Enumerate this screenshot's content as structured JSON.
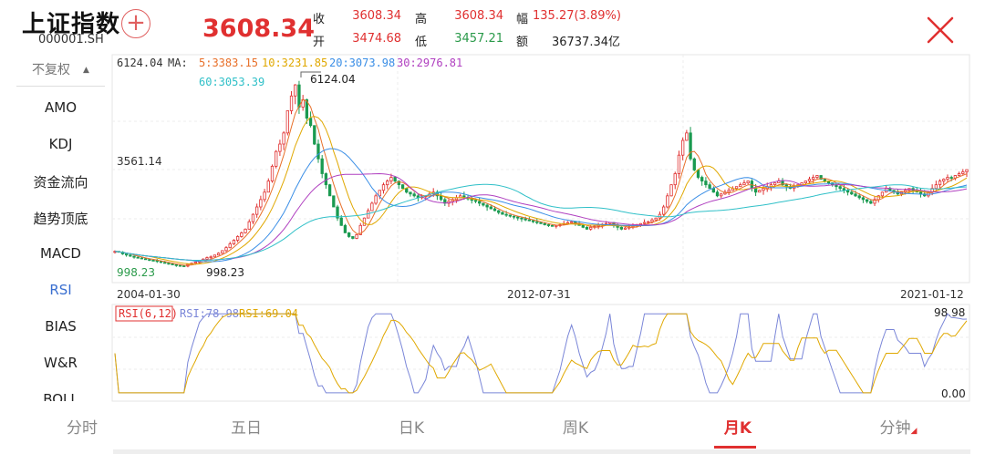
{
  "header": {
    "name": "上证指数",
    "code": "000001.SH",
    "price": "3608.34",
    "fields": [
      {
        "label": "收",
        "value": "3608.34",
        "color": "#e03030"
      },
      {
        "label": "高",
        "value": "3608.34",
        "color": "#e03030"
      },
      {
        "label": "幅",
        "value": "135.27(3.89%)",
        "color": "#e03030"
      },
      {
        "label": "开",
        "value": "3474.68",
        "color": "#e03030"
      },
      {
        "label": "低",
        "value": "3457.21",
        "color": "#2a9a4a"
      },
      {
        "label": "额",
        "value": "36737.34亿",
        "color": "#222222"
      }
    ]
  },
  "sidebar": {
    "adjust": "不复权",
    "items": [
      "AMO",
      "KDJ",
      "资金流向",
      "趋势顶底",
      "MACD",
      "RSI",
      "BIAS",
      "W&R",
      "BOLL"
    ],
    "active": "RSI"
  },
  "tabs": {
    "items": [
      "分时",
      "五日",
      "日K",
      "周K",
      "月K",
      "分钟"
    ],
    "active": "月K"
  },
  "chart_data": [
    {
      "type": "candlestick",
      "top_price_label": "6124.04",
      "ma_prefix": "MA:",
      "ma_legend": [
        {
          "name": "5",
          "text": "5:3383.15",
          "color": "#e8702a"
        },
        {
          "name": "10",
          "text": "10:3231.85",
          "color": "#e0a800"
        },
        {
          "name": "20",
          "text": "20:3073.98",
          "color": "#3a8ee6"
        },
        {
          "name": "30",
          "text": "30:2976.81",
          "color": "#b040c0"
        },
        {
          "name": "60",
          "text": "60:3053.39",
          "color": "#30c0c8"
        }
      ],
      "max_marker": "6124.04",
      "min_marker": "998.23",
      "bottom_left_label": "998.23",
      "mid_price_label": "3561.14",
      "x_ticks": [
        "2004-01-30",
        "2012-07-31",
        "2021-01-12"
      ],
      "ylim": [
        998.23,
        6124.04
      ],
      "series_close": [
        1400,
        1380,
        1330,
        1300,
        1270,
        1240,
        1220,
        1200,
        1180,
        1160,
        1150,
        1130,
        1100,
        1080,
        1060,
        1040,
        1020,
        1010,
        1000,
        1050,
        1080,
        1110,
        1160,
        1190,
        1230,
        1250,
        1300,
        1350,
        1420,
        1500,
        1600,
        1700,
        1800,
        1900,
        2000,
        2200,
        2400,
        2600,
        2800,
        3000,
        3300,
        3700,
        4100,
        4300,
        4600,
        5200,
        5600,
        5900,
        5300,
        5500,
        5000,
        4800,
        4300,
        3900,
        3500,
        3200,
        2900,
        2600,
        2300,
        2100,
        1900,
        1800,
        1750,
        1850,
        2100,
        2300,
        2500,
        2700,
        2900,
        3050,
        3200,
        3300,
        3400,
        3300,
        3200,
        3100,
        3000,
        2950,
        2900,
        2850,
        2880,
        2900,
        2950,
        3000,
        2900,
        2800,
        2700,
        2750,
        2800,
        2850,
        2900,
        2860,
        2820,
        2780,
        2750,
        2700,
        2650,
        2600,
        2550,
        2500,
        2450,
        2400,
        2380,
        2350,
        2330,
        2300,
        2280,
        2250,
        2230,
        2200,
        2180,
        2150,
        2120,
        2100,
        2080,
        2100,
        2120,
        2150,
        2180,
        2200,
        2150,
        2100,
        2050,
        2000,
        2050,
        2080,
        2100,
        2130,
        2150,
        2180,
        2100,
        2050,
        2000,
        2030,
        2060,
        2090,
        2120,
        2150,
        2180,
        2200,
        2250,
        2300,
        2400,
        2600,
        2900,
        3200,
        3500,
        4000,
        4400,
        4600,
        3900,
        3600,
        3400,
        3300,
        3200,
        3100,
        3000,
        2900,
        2950,
        3000,
        3050,
        3100,
        3150,
        3200,
        3250,
        3300,
        3100,
        3000,
        3050,
        3100,
        3150,
        3200,
        3250,
        3300,
        3200,
        3150,
        3100,
        3150,
        3200,
        3250,
        3300,
        3350,
        3400,
        3450,
        3350,
        3300,
        3250,
        3200,
        3150,
        3100,
        3050,
        3000,
        2950,
        2900,
        2850,
        2800,
        2750,
        2700,
        2800,
        2900,
        3000,
        3100,
        3050,
        3000,
        2950,
        3000,
        3050,
        3100,
        3050,
        3000,
        2950,
        2900,
        3000,
        3100,
        3200,
        3300,
        3350,
        3400,
        3380,
        3450,
        3500,
        3550,
        3608
      ]
    },
    {
      "type": "line",
      "legend_box": "RSI(6,12)",
      "series": [
        {
          "name": "RSI:78.98",
          "color": "#7a86d8"
        },
        {
          "name": "RSI:69.04",
          "color": "#e0a800"
        }
      ],
      "ymax_label": "98.98",
      "ymin_label": "0.00",
      "ylim": [
        0,
        100
      ]
    }
  ]
}
